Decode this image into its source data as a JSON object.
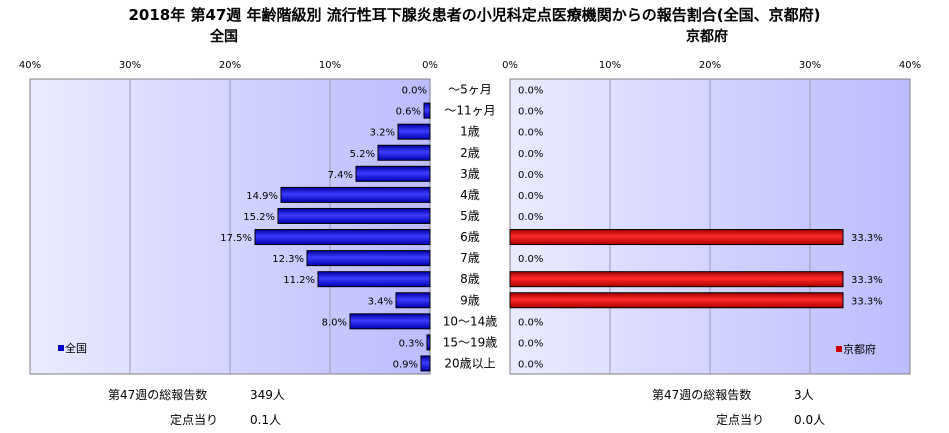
{
  "title": "2018年 第47週 年齢階級別 流行性耳下腺炎患者の小児科定点医療機関からの報告割合(全国、京都府)",
  "chart_data": [
    {
      "type": "bar",
      "subtitle": "全国",
      "legend": "全国",
      "legend_position": "bottom-left",
      "color": "#0000cc",
      "xlim": [
        0,
        40
      ],
      "direction": "reversed",
      "ticks": [
        "40%",
        "30%",
        "20%",
        "10%",
        "0%"
      ],
      "categories": [
        "～5ヶ月",
        "～11ヶ月",
        "1歳",
        "2歳",
        "3歳",
        "4歳",
        "5歳",
        "6歳",
        "7歳",
        "8歳",
        "9歳",
        "10～14歳",
        "15～19歳",
        "20歳以上"
      ],
      "values": [
        0.0,
        0.6,
        3.2,
        5.2,
        7.4,
        14.9,
        15.2,
        17.5,
        12.3,
        11.2,
        3.4,
        8.0,
        0.3,
        0.9
      ],
      "labels": [
        "0.0%",
        "0.6%",
        "3.2%",
        "5.2%",
        "7.4%",
        "14.9%",
        "15.2%",
        "17.5%",
        "12.3%",
        "11.2%",
        "3.4%",
        "8.0%",
        "0.3%",
        "0.9%"
      ]
    },
    {
      "type": "bar",
      "subtitle": "京都府",
      "legend": "京都府",
      "legend_position": "bottom-right",
      "color": "#cc0000",
      "xlim": [
        0,
        40
      ],
      "direction": "normal",
      "ticks": [
        "0%",
        "10%",
        "20%",
        "30%",
        "40%"
      ],
      "categories": [
        "～5ヶ月",
        "～11ヶ月",
        "1歳",
        "2歳",
        "3歳",
        "4歳",
        "5歳",
        "6歳",
        "7歳",
        "8歳",
        "9歳",
        "10～14歳",
        "15～19歳",
        "20歳以上"
      ],
      "values": [
        0.0,
        0.0,
        0.0,
        0.0,
        0.0,
        0.0,
        0.0,
        33.3,
        0.0,
        33.3,
        33.3,
        0.0,
        0.0,
        0.0
      ],
      "labels": [
        "0.0%",
        "0.0%",
        "0.0%",
        "0.0%",
        "0.0%",
        "0.0%",
        "0.0%",
        "33.3%",
        "0.0%",
        "33.3%",
        "33.3%",
        "0.0%",
        "0.0%",
        "0.0%"
      ]
    }
  ],
  "footer": {
    "national": {
      "total_label": "第47週の総報告数",
      "total_value": "349人",
      "per_label": "定点当り",
      "per_value": "0.1人"
    },
    "kyoto": {
      "total_label": "第47週の総報告数",
      "total_value": "3人",
      "per_label": "定点当り",
      "per_value": "0.0人"
    }
  }
}
